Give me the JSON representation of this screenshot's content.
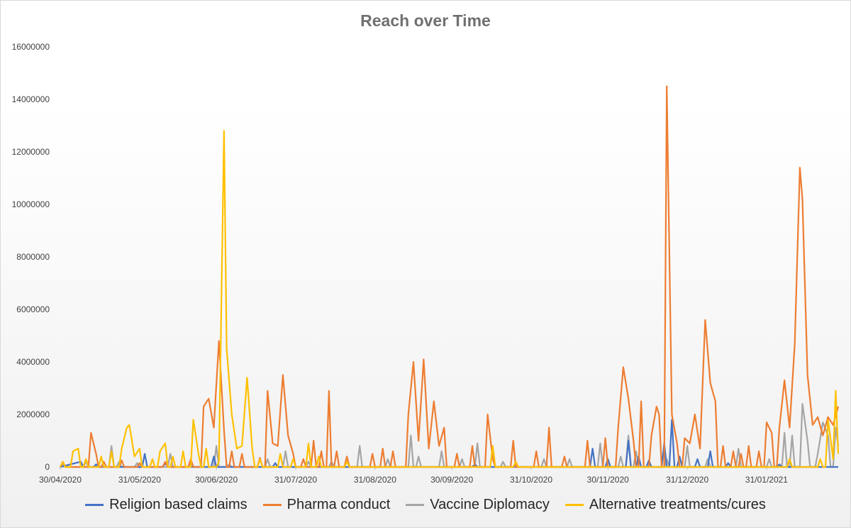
{
  "chart_data": {
    "type": "line",
    "title": "Reach over Time",
    "xlabel": "",
    "ylabel": "",
    "x_start": "30/04/2020",
    "x_end": "28/02/2021",
    "x_tick_labels": [
      "30/04/2020",
      "31/05/2020",
      "30/06/2020",
      "31/07/2020",
      "31/08/2020",
      "30/09/2020",
      "31/10/2020",
      "30/11/2020",
      "31/12/2020",
      "31/01/2021"
    ],
    "y_ticks": [
      0,
      2000000,
      4000000,
      6000000,
      8000000,
      10000000,
      12000000,
      14000000,
      16000000
    ],
    "ylim": [
      0,
      16000000
    ],
    "grid": false,
    "legend_position": "bottom",
    "series": [
      {
        "name": "Religion based claims",
        "color": "#4472c4",
        "points": [
          [
            "08/05/2020",
            200000
          ],
          [
            "14/05/2020",
            100000
          ],
          [
            "02/06/2020",
            500000
          ],
          [
            "10/06/2020",
            150000
          ],
          [
            "29/06/2020",
            400000
          ],
          [
            "23/07/2020",
            150000
          ],
          [
            "09/10/2020",
            100000
          ],
          [
            "24/11/2020",
            700000
          ],
          [
            "30/11/2020",
            300000
          ],
          [
            "08/12/2020",
            1000000
          ],
          [
            "12/12/2020",
            400000
          ],
          [
            "16/12/2020",
            250000
          ],
          [
            "22/12/2020",
            900000
          ],
          [
            "25/12/2020",
            1800000
          ],
          [
            "28/12/2020",
            400000
          ],
          [
            "04/01/2021",
            300000
          ],
          [
            "09/01/2021",
            600000
          ],
          [
            "16/01/2021",
            150000
          ],
          [
            "05/02/2021",
            100000
          ]
        ]
      },
      {
        "name": "Pharma conduct",
        "color": "#ed7d31",
        "points": [
          [
            "01/05/2020",
            200000
          ],
          [
            "12/05/2020",
            1300000
          ],
          [
            "14/05/2020",
            500000
          ],
          [
            "17/05/2020",
            200000
          ],
          [
            "24/05/2020",
            250000
          ],
          [
            "31/05/2020",
            150000
          ],
          [
            "10/06/2020",
            200000
          ],
          [
            "20/06/2020",
            300000
          ],
          [
            "25/06/2020",
            2300000
          ],
          [
            "27/06/2020",
            2600000
          ],
          [
            "29/06/2020",
            1500000
          ],
          [
            "01/07/2020",
            4800000
          ],
          [
            "03/07/2020",
            1400000
          ],
          [
            "06/07/2020",
            600000
          ],
          [
            "10/07/2020",
            500000
          ],
          [
            "17/07/2020",
            350000
          ],
          [
            "20/07/2020",
            2900000
          ],
          [
            "22/07/2020",
            900000
          ],
          [
            "24/07/2020",
            800000
          ],
          [
            "26/07/2020",
            3500000
          ],
          [
            "28/07/2020",
            1200000
          ],
          [
            "30/07/2020",
            500000
          ],
          [
            "03/08/2020",
            300000
          ],
          [
            "07/08/2020",
            1000000
          ],
          [
            "10/08/2020",
            600000
          ],
          [
            "13/08/2020",
            2900000
          ],
          [
            "16/08/2020",
            600000
          ],
          [
            "20/08/2020",
            400000
          ],
          [
            "30/08/2020",
            500000
          ],
          [
            "03/09/2020",
            700000
          ],
          [
            "07/09/2020",
            600000
          ],
          [
            "13/09/2020",
            2000000
          ],
          [
            "15/09/2020",
            4000000
          ],
          [
            "17/09/2020",
            1000000
          ],
          [
            "19/09/2020",
            4100000
          ],
          [
            "21/09/2020",
            700000
          ],
          [
            "23/09/2020",
            2500000
          ],
          [
            "25/09/2020",
            800000
          ],
          [
            "27/09/2020",
            1500000
          ],
          [
            "02/10/2020",
            500000
          ],
          [
            "08/10/2020",
            800000
          ],
          [
            "14/10/2020",
            2000000
          ],
          [
            "16/10/2020",
            300000
          ],
          [
            "24/10/2020",
            1000000
          ],
          [
            "02/11/2020",
            600000
          ],
          [
            "07/11/2020",
            1500000
          ],
          [
            "13/11/2020",
            400000
          ],
          [
            "22/11/2020",
            1000000
          ],
          [
            "29/11/2020",
            1100000
          ],
          [
            "04/12/2020",
            1500000
          ],
          [
            "06/12/2020",
            3800000
          ],
          [
            "08/12/2020",
            2600000
          ],
          [
            "10/12/2020",
            1000000
          ],
          [
            "13/12/2020",
            2500000
          ],
          [
            "17/12/2020",
            1200000
          ],
          [
            "19/12/2020",
            2300000
          ],
          [
            "20/12/2020",
            2000000
          ],
          [
            "23/12/2020",
            14500000
          ],
          [
            "25/12/2020",
            2000000
          ],
          [
            "27/12/2020",
            900000
          ],
          [
            "30/12/2020",
            1100000
          ],
          [
            "01/01/2021",
            900000
          ],
          [
            "03/01/2021",
            2000000
          ],
          [
            "05/01/2021",
            700000
          ],
          [
            "07/01/2021",
            5600000
          ],
          [
            "09/01/2021",
            3200000
          ],
          [
            "11/01/2021",
            2500000
          ],
          [
            "14/01/2021",
            800000
          ],
          [
            "18/01/2021",
            600000
          ],
          [
            "21/01/2021",
            500000
          ],
          [
            "24/01/2021",
            800000
          ],
          [
            "28/01/2021",
            600000
          ],
          [
            "31/01/2021",
            1700000
          ],
          [
            "02/02/2021",
            1300000
          ],
          [
            "05/02/2021",
            1500000
          ],
          [
            "07/02/2021",
            3300000
          ],
          [
            "09/02/2021",
            1500000
          ],
          [
            "11/02/2021",
            4700000
          ],
          [
            "13/02/2021",
            11400000
          ],
          [
            "14/02/2021",
            10200000
          ],
          [
            "16/02/2021",
            3500000
          ],
          [
            "18/02/2021",
            1600000
          ],
          [
            "20/02/2021",
            1900000
          ],
          [
            "22/02/2021",
            1200000
          ],
          [
            "24/02/2021",
            1900000
          ],
          [
            "26/02/2021",
            1600000
          ],
          [
            "28/02/2021",
            2300000
          ]
        ]
      },
      {
        "name": "Vaccine Diplomacy",
        "color": "#a5a5a5",
        "points": [
          [
            "01/05/2020",
            100000
          ],
          [
            "10/05/2020",
            200000
          ],
          [
            "20/05/2020",
            800000
          ],
          [
            "23/05/2020",
            200000
          ],
          [
            "30/05/2020",
            150000
          ],
          [
            "12/06/2020",
            500000
          ],
          [
            "20/06/2020",
            200000
          ],
          [
            "30/06/2020",
            800000
          ],
          [
            "05/07/2020",
            100000
          ],
          [
            "20/07/2020",
            300000
          ],
          [
            "27/07/2020",
            600000
          ],
          [
            "05/08/2020",
            200000
          ],
          [
            "14/08/2020",
            200000
          ],
          [
            "25/08/2020",
            800000
          ],
          [
            "05/09/2020",
            300000
          ],
          [
            "14/09/2020",
            1200000
          ],
          [
            "17/09/2020",
            400000
          ],
          [
            "26/09/2020",
            600000
          ],
          [
            "04/10/2020",
            300000
          ],
          [
            "10/10/2020",
            900000
          ],
          [
            "20/10/2020",
            200000
          ],
          [
            "05/11/2020",
            300000
          ],
          [
            "15/11/2020",
            300000
          ],
          [
            "27/11/2020",
            900000
          ],
          [
            "05/12/2020",
            400000
          ],
          [
            "08/12/2020",
            1200000
          ],
          [
            "11/12/2020",
            600000
          ],
          [
            "23/12/2020",
            300000
          ],
          [
            "31/12/2020",
            800000
          ],
          [
            "08/01/2021",
            300000
          ],
          [
            "20/01/2021",
            700000
          ],
          [
            "01/02/2021",
            300000
          ],
          [
            "07/02/2021",
            1300000
          ],
          [
            "10/02/2021",
            1200000
          ],
          [
            "14/02/2021",
            2400000
          ],
          [
            "16/02/2021",
            1000000
          ],
          [
            "20/02/2021",
            500000
          ],
          [
            "22/02/2021",
            1700000
          ],
          [
            "24/02/2021",
            1200000
          ],
          [
            "27/02/2021",
            1500000
          ],
          [
            "28/02/2021",
            800000
          ]
        ]
      },
      {
        "name": "Alternative treatments/cures",
        "color": "#ffc000",
        "points": [
          [
            "01/05/2020",
            200000
          ],
          [
            "05/05/2020",
            600000
          ],
          [
            "07/05/2020",
            700000
          ],
          [
            "10/05/2020",
            300000
          ],
          [
            "16/05/2020",
            400000
          ],
          [
            "20/05/2020",
            600000
          ],
          [
            "24/05/2020",
            700000
          ],
          [
            "26/05/2020",
            1500000
          ],
          [
            "27/05/2020",
            1600000
          ],
          [
            "29/05/2020",
            400000
          ],
          [
            "31/05/2020",
            700000
          ],
          [
            "05/06/2020",
            300000
          ],
          [
            "08/06/2020",
            600000
          ],
          [
            "10/06/2020",
            900000
          ],
          [
            "13/06/2020",
            400000
          ],
          [
            "17/06/2020",
            600000
          ],
          [
            "21/06/2020",
            1800000
          ],
          [
            "23/06/2020",
            500000
          ],
          [
            "26/06/2020",
            700000
          ],
          [
            "01/07/2020",
            200000
          ],
          [
            "03/07/2020",
            12800000
          ],
          [
            "04/07/2020",
            4500000
          ],
          [
            "06/07/2020",
            2000000
          ],
          [
            "08/07/2020",
            700000
          ],
          [
            "10/07/2020",
            800000
          ],
          [
            "12/07/2020",
            3400000
          ],
          [
            "14/07/2020",
            700000
          ],
          [
            "17/07/2020",
            300000
          ],
          [
            "25/07/2020",
            500000
          ],
          [
            "30/07/2020",
            300000
          ],
          [
            "05/08/2020",
            900000
          ],
          [
            "09/08/2020",
            400000
          ],
          [
            "20/08/2020",
            200000
          ],
          [
            "16/10/2020",
            800000
          ],
          [
            "25/10/2020",
            200000
          ],
          [
            "09/02/2021",
            300000
          ],
          [
            "21/02/2021",
            300000
          ],
          [
            "24/02/2021",
            1800000
          ],
          [
            "26/02/2021",
            300000
          ],
          [
            "27/02/2021",
            2900000
          ],
          [
            "28/02/2021",
            500000
          ]
        ]
      }
    ]
  }
}
